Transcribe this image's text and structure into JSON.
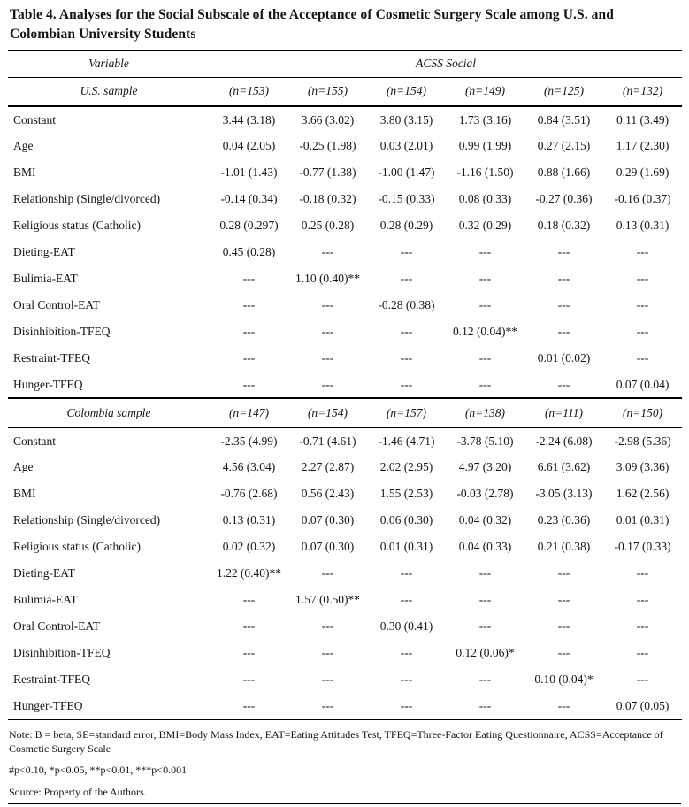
{
  "title": "Table 4. Analyses for the Social Subscale of the Acceptance of Cosmetic Surgery Scale among U.S. and Colombian University Students",
  "colors": {
    "text": "#151515",
    "rule": "#000000",
    "background": "#ffffff"
  },
  "header": {
    "variable_label": "Variable",
    "scale_label": "ACSS Social"
  },
  "sections": [
    {
      "sample_label": "U.S. sample",
      "n_columns": [
        "(n=153)",
        "(n=155)",
        "(n=154)",
        "(n=149)",
        "(n=125)",
        "(n=132)"
      ],
      "rows": [
        {
          "label": "Constant",
          "values": [
            "3.44 (3.18)",
            "3.66 (3.02)",
            "3.80 (3.15)",
            "1.73 (3.16)",
            "0.84 (3.51)",
            "0.11 (3.49)"
          ]
        },
        {
          "label": "Age",
          "values": [
            "0.04 (2.05)",
            "-0.25 (1.98)",
            "0.03 (2.01)",
            "0.99 (1.99)",
            "0.27 (2.15)",
            "1.17 (2.30)"
          ]
        },
        {
          "label": "BMI",
          "values": [
            "-1.01 (1.43)",
            "-0.77 (1.38)",
            "-1.00 (1.47)",
            "-1.16 (1.50)",
            "0.88 (1.66)",
            "0.29 (1.69)"
          ]
        },
        {
          "label": "Relationship (Single/divorced)",
          "values": [
            "-0.14 (0.34)",
            "-0.18 (0.32)",
            "-0.15 (0.33)",
            "0.08 (0.33)",
            "-0.27 (0.36)",
            "-0.16 (0.37)"
          ]
        },
        {
          "label": "Religious status (Catholic)",
          "values": [
            "0.28 (0.297)",
            "0.25 (0.28)",
            "0.28 (0.29)",
            "0.32 (0.29)",
            "0.18 (0.32)",
            "0.13 (0.31)"
          ]
        },
        {
          "label": "Dieting-EAT",
          "values": [
            "0.45 (0.28)",
            "---",
            "---",
            "---",
            "---",
            "---"
          ]
        },
        {
          "label": "Bulimia-EAT",
          "values": [
            "---",
            "1.10 (0.40)**",
            "---",
            "---",
            "---",
            "---"
          ]
        },
        {
          "label": "Oral Control-EAT",
          "values": [
            "---",
            "---",
            "-0.28 (0.38)",
            "---",
            "---",
            "---"
          ]
        },
        {
          "label": "Disinhibition-TFEQ",
          "values": [
            "---",
            "---",
            "---",
            "0.12 (0.04)**",
            "---",
            "---"
          ]
        },
        {
          "label": "Restraint-TFEQ",
          "values": [
            "---",
            "---",
            "---",
            "---",
            "0.01 (0.02)",
            "---"
          ]
        },
        {
          "label": "Hunger-TFEQ",
          "values": [
            "---",
            "---",
            "---",
            "---",
            "---",
            "0.07 (0.04)"
          ]
        }
      ]
    },
    {
      "sample_label": "Colombia sample",
      "n_columns": [
        "(n=147)",
        "(n=154)",
        "(n=157)",
        "(n=138)",
        "(n=111)",
        "(n=150)"
      ],
      "rows": [
        {
          "label": "Constant",
          "values": [
            "-2.35 (4.99)",
            "-0.71 (4.61)",
            "-1.46 (4.71)",
            "-3.78 (5.10)",
            "-2.24 (6.08)",
            "-2.98 (5.36)"
          ]
        },
        {
          "label": "Age",
          "values": [
            "4.56 (3.04)",
            "2.27 (2.87)",
            "2.02 (2.95)",
            "4.97 (3.20)",
            "6.61 (3.62)",
            "3.09 (3.36)"
          ]
        },
        {
          "label": "BMI",
          "values": [
            "-0.76 (2.68)",
            "0.56 (2.43)",
            "1.55 (2.53)",
            "-0.03 (2.78)",
            "-3.05 (3.13)",
            "1.62 (2.56)"
          ]
        },
        {
          "label": "Relationship (Single/divorced)",
          "values": [
            "0.13 (0.31)",
            "0.07 (0.30)",
            "0.06 (0.30)",
            "0.04 (0.32)",
            "0.23 (0.36)",
            "0.01 (0.31)"
          ]
        },
        {
          "label": "Religious status (Catholic)",
          "values": [
            "0.02 (0.32)",
            "0.07 (0.30)",
            "0.01 (0.31)",
            "0.04 (0.33)",
            "0.21 (0.38)",
            "-0.17 (0.33)"
          ]
        },
        {
          "label": "Dieting-EAT",
          "values": [
            "1.22 (0.40)**",
            "---",
            "---",
            "---",
            "---",
            "---"
          ]
        },
        {
          "label": "Bulimia-EAT",
          "values": [
            "---",
            "1.57 (0.50)**",
            "---",
            "---",
            "---",
            "---"
          ]
        },
        {
          "label": "Oral Control-EAT",
          "values": [
            "---",
            "---",
            "0.30 (0.41)",
            "---",
            "---",
            "---"
          ]
        },
        {
          "label": "Disinhibition-TFEQ",
          "values": [
            "---",
            "---",
            "---",
            "0.12 (0.06)*",
            "---",
            "---"
          ]
        },
        {
          "label": "Restraint-TFEQ",
          "values": [
            "---",
            "---",
            "---",
            "---",
            "0.10 (0.04)*",
            "---"
          ]
        },
        {
          "label": "Hunger-TFEQ",
          "values": [
            "---",
            "---",
            "---",
            "---",
            "---",
            "0.07 (0.05)"
          ]
        }
      ]
    }
  ],
  "notes": {
    "abbreviations": "Note: B = beta, SE=standard error, BMI=Body Mass Index, EAT=Eating Attitudes Test, TFEQ=Three-Factor Eating Questionnaire, ACSS=Acceptance of Cosmetic Surgery Scale",
    "significance": "#p<0.10, *p<0.05, **p<0.01, ***p<0.001",
    "source": "Source: Property of the Authors."
  }
}
